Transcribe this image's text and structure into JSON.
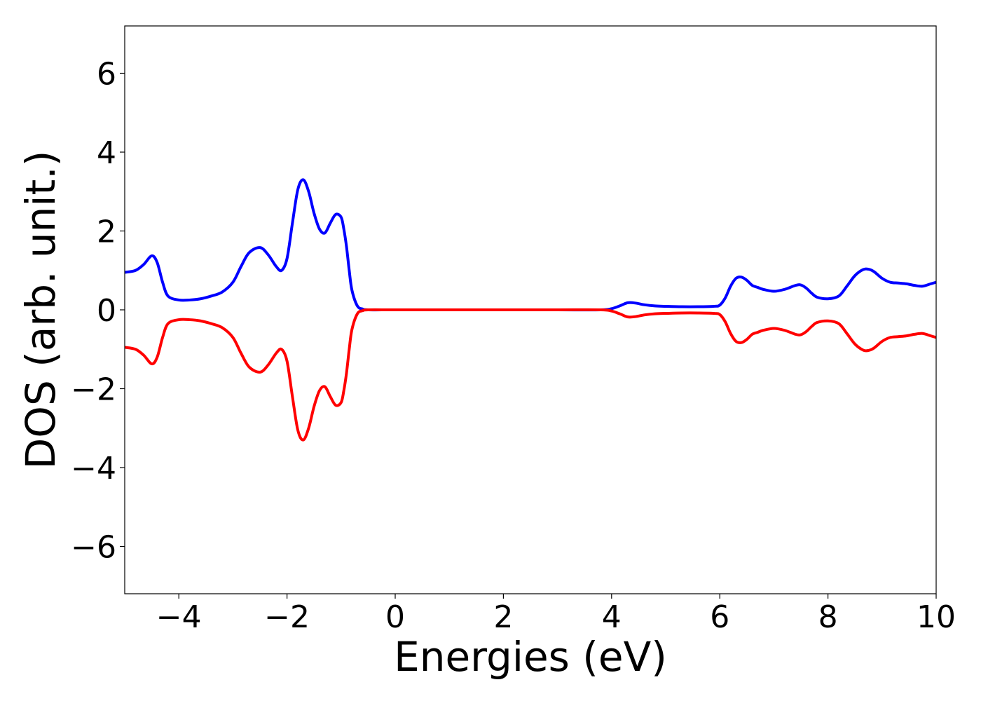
{
  "chart_data": {
    "type": "line",
    "title": "",
    "xlabel": "Energies (eV)",
    "ylabel": "DOS (arb. unit.)",
    "xlim": [
      -5,
      10
    ],
    "ylim": [
      -7.2,
      7.2
    ],
    "xticks": [
      -4,
      -2,
      0,
      2,
      4,
      6,
      8,
      10
    ],
    "xtick_labels": [
      "−4",
      "−2",
      "0",
      "2",
      "4",
      "6",
      "8",
      "10"
    ],
    "yticks": [
      -6,
      -4,
      -2,
      0,
      2,
      4,
      6
    ],
    "ytick_labels": [
      "−6",
      "−4",
      "−2",
      "0",
      "2",
      "4",
      "6"
    ],
    "grid": false,
    "legend": "none",
    "series": [
      {
        "color": "#0000ff",
        "x": [
          -5.0,
          -4.8,
          -4.65,
          -4.5,
          -4.4,
          -4.3,
          -4.2,
          -4.0,
          -3.8,
          -3.6,
          -3.4,
          -3.2,
          -3.0,
          -2.85,
          -2.7,
          -2.5,
          -2.35,
          -2.2,
          -2.1,
          -2.0,
          -1.9,
          -1.8,
          -1.7,
          -1.6,
          -1.5,
          -1.4,
          -1.3,
          -1.2,
          -1.1,
          -1.0,
          -0.95,
          -0.9,
          -0.85,
          -0.8,
          -0.7,
          -0.6,
          -0.5,
          0.0,
          1.0,
          2.0,
          3.0,
          3.8,
          4.0,
          4.15,
          4.3,
          4.45,
          4.6,
          4.8,
          5.0,
          5.3,
          5.6,
          5.9,
          6.0,
          6.1,
          6.2,
          6.3,
          6.4,
          6.5,
          6.6,
          6.7,
          6.8,
          7.0,
          7.2,
          7.4,
          7.5,
          7.6,
          7.7,
          7.8,
          8.0,
          8.2,
          8.35,
          8.5,
          8.65,
          8.75,
          8.85,
          9.0,
          9.15,
          9.3,
          9.45,
          9.6,
          9.75,
          9.9,
          10.0
        ],
        "y": [
          0.95,
          1.0,
          1.15,
          1.37,
          1.2,
          0.7,
          0.35,
          0.25,
          0.25,
          0.28,
          0.35,
          0.45,
          0.7,
          1.1,
          1.45,
          1.58,
          1.4,
          1.1,
          1.0,
          1.3,
          2.2,
          3.05,
          3.3,
          3.0,
          2.45,
          2.05,
          1.95,
          2.2,
          2.42,
          2.35,
          2.05,
          1.6,
          1.0,
          0.5,
          0.1,
          0.02,
          0.0,
          0.0,
          0.0,
          0.0,
          0.0,
          0.0,
          0.03,
          0.1,
          0.18,
          0.17,
          0.13,
          0.1,
          0.09,
          0.08,
          0.08,
          0.09,
          0.12,
          0.3,
          0.6,
          0.8,
          0.83,
          0.75,
          0.62,
          0.57,
          0.52,
          0.47,
          0.52,
          0.62,
          0.63,
          0.55,
          0.42,
          0.32,
          0.28,
          0.35,
          0.6,
          0.87,
          1.02,
          1.03,
          0.97,
          0.8,
          0.7,
          0.68,
          0.66,
          0.62,
          0.6,
          0.66,
          0.7
        ]
      },
      {
        "color": "#ff0000",
        "x": [
          -5.0,
          -4.8,
          -4.65,
          -4.5,
          -4.4,
          -4.3,
          -4.2,
          -4.0,
          -3.8,
          -3.6,
          -3.4,
          -3.2,
          -3.0,
          -2.85,
          -2.7,
          -2.5,
          -2.35,
          -2.2,
          -2.1,
          -2.0,
          -1.9,
          -1.8,
          -1.7,
          -1.6,
          -1.5,
          -1.4,
          -1.3,
          -1.2,
          -1.1,
          -1.0,
          -0.95,
          -0.9,
          -0.85,
          -0.8,
          -0.7,
          -0.6,
          -0.5,
          0.0,
          1.0,
          2.0,
          3.0,
          3.8,
          4.0,
          4.15,
          4.3,
          4.45,
          4.6,
          4.8,
          5.0,
          5.3,
          5.6,
          5.9,
          6.0,
          6.1,
          6.2,
          6.3,
          6.4,
          6.5,
          6.6,
          6.7,
          6.8,
          7.0,
          7.2,
          7.4,
          7.5,
          7.6,
          7.7,
          7.8,
          8.0,
          8.2,
          8.35,
          8.5,
          8.65,
          8.75,
          8.85,
          9.0,
          9.15,
          9.3,
          9.45,
          9.6,
          9.75,
          9.9,
          10.0
        ],
        "y": [
          -0.95,
          -1.0,
          -1.15,
          -1.37,
          -1.2,
          -0.7,
          -0.35,
          -0.25,
          -0.25,
          -0.28,
          -0.35,
          -0.45,
          -0.7,
          -1.1,
          -1.45,
          -1.58,
          -1.4,
          -1.1,
          -1.0,
          -1.3,
          -2.2,
          -3.05,
          -3.3,
          -3.0,
          -2.45,
          -2.05,
          -1.95,
          -2.2,
          -2.42,
          -2.35,
          -2.05,
          -1.6,
          -1.0,
          -0.5,
          -0.1,
          -0.02,
          0.0,
          0.0,
          0.0,
          0.0,
          0.0,
          0.0,
          -0.03,
          -0.1,
          -0.18,
          -0.17,
          -0.13,
          -0.1,
          -0.09,
          -0.08,
          -0.08,
          -0.09,
          -0.12,
          -0.3,
          -0.6,
          -0.8,
          -0.83,
          -0.75,
          -0.62,
          -0.57,
          -0.52,
          -0.47,
          -0.52,
          -0.62,
          -0.63,
          -0.55,
          -0.42,
          -0.32,
          -0.28,
          -0.35,
          -0.6,
          -0.87,
          -1.02,
          -1.03,
          -0.97,
          -0.8,
          -0.7,
          -0.68,
          -0.66,
          -0.62,
          -0.6,
          -0.66,
          -0.7
        ]
      }
    ]
  }
}
